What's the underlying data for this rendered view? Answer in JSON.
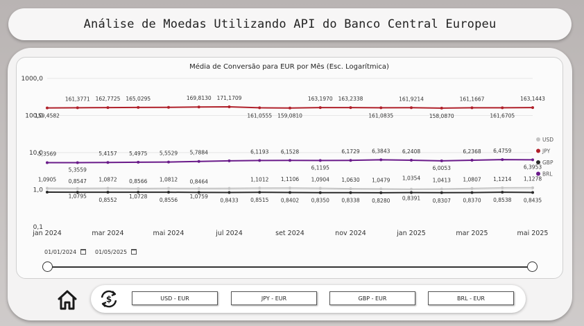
{
  "header": {
    "title": "Análise de Moedas Utilizando API do Banco Central Europeu"
  },
  "filters": {
    "start_date": "01/01/2024",
    "end_date": "01/05/2025"
  },
  "buttons": {
    "usd": "USD - EUR",
    "jpy": "JPY - EUR",
    "gbp": "GBP - EUR",
    "brl": "BRL - EUR"
  },
  "icons": {
    "home": "home-icon",
    "refresh": "currency-exchange-icon",
    "calendar": "calendar-icon"
  },
  "chart_data": {
    "type": "line",
    "title": "Média de Conversão para EUR por Mês (Esc. Logarítmica)",
    "y_scale": "log",
    "ylim": [
      0.1,
      1000
    ],
    "y_ticks": [
      "1000,0",
      "100,0",
      "10,0",
      "1,0",
      "0,1"
    ],
    "x_tick_labels": [
      "jan 2024",
      "mar 2024",
      "mai 2024",
      "jul 2024",
      "set 2024",
      "nov 2024",
      "jan 2025",
      "mar 2025",
      "mai 2025"
    ],
    "x": [
      "jan 2024",
      "fev 2024",
      "mar 2024",
      "abr 2024",
      "mai 2024",
      "jun 2024",
      "jul 2024",
      "ago 2024",
      "set 2024",
      "out 2024",
      "nov 2024",
      "dez 2024",
      "jan 2025",
      "fev 2025",
      "mar 2025",
      "abr 2025",
      "mai 2025"
    ],
    "legend_position": "right",
    "series": [
      {
        "name": "USD",
        "color": "#c4c4c4",
        "values": [
          1.0905,
          1.0795,
          1.0872,
          1.0728,
          1.0812,
          1.0759,
          1.0844,
          1.1012,
          1.1106,
          1.0904,
          1.063,
          1.0479,
          1.0354,
          1.0413,
          1.0807,
          1.1214,
          1.1278
        ],
        "labels": [
          "1,0905",
          "1,0795",
          "1,0872",
          "1,0728",
          "1,0812",
          "1,0759",
          "",
          "1,1012",
          "1,1106",
          "1,0904",
          "1,0630",
          "1,0479",
          "1,0354",
          "1,0413",
          "1,0807",
          "1,1214",
          "1,1278"
        ]
      },
      {
        "name": "JPY",
        "color": "#b0212b",
        "values": [
          159.4582,
          161.3771,
          162.7725,
          165.0295,
          166.0,
          169.813,
          171.1709,
          161.0555,
          159.081,
          163.197,
          163.2338,
          161.0835,
          161.9214,
          158.087,
          161.1667,
          161.6705,
          163.1443
        ],
        "labels": [
          "159,4582",
          "161,3771",
          "162,7725",
          "165,0295",
          "",
          "169,8130",
          "171,1709",
          "161,0555",
          "159,0810",
          "163,1970",
          "163,2338",
          "161,0835",
          "161,9214",
          "158,0870",
          "161,1667",
          "161,6705",
          "163,1443"
        ]
      },
      {
        "name": "GBP",
        "color": "#2a2a2a",
        "values": [
          0.859,
          0.8547,
          0.8552,
          0.8566,
          0.8556,
          0.8464,
          0.8433,
          0.8515,
          0.8402,
          0.835,
          0.8338,
          0.828,
          0.8391,
          0.8307,
          0.837,
          0.8538,
          0.8435
        ],
        "labels": [
          "",
          "0,8547",
          "0,8552",
          "0,8566",
          "0,8556",
          "0,8464",
          "0,8433",
          "0,8515",
          "0,8402",
          "0,8350",
          "0,8338",
          "0,8280",
          "0,8391",
          "0,8307",
          "0,8370",
          "0,8538",
          "0,8435"
        ]
      },
      {
        "name": "BRL",
        "color": "#6a1b8a",
        "values": [
          5.3569,
          5.3559,
          5.4157,
          5.4975,
          5.5529,
          5.7884,
          6.0,
          6.1193,
          6.1528,
          6.1195,
          6.1729,
          6.3843,
          6.2408,
          6.0053,
          6.2368,
          6.4759,
          6.3953
        ],
        "labels": [
          "5,3569",
          "5,3559",
          "5,4157",
          "5,4975",
          "5,5529",
          "5,7884",
          "",
          "6,1193",
          "6,1528",
          "6,1195",
          "6,1729",
          "6,3843",
          "6,2408",
          "6,0053",
          "6,2368",
          "6,4759",
          "6,3953"
        ]
      }
    ]
  }
}
